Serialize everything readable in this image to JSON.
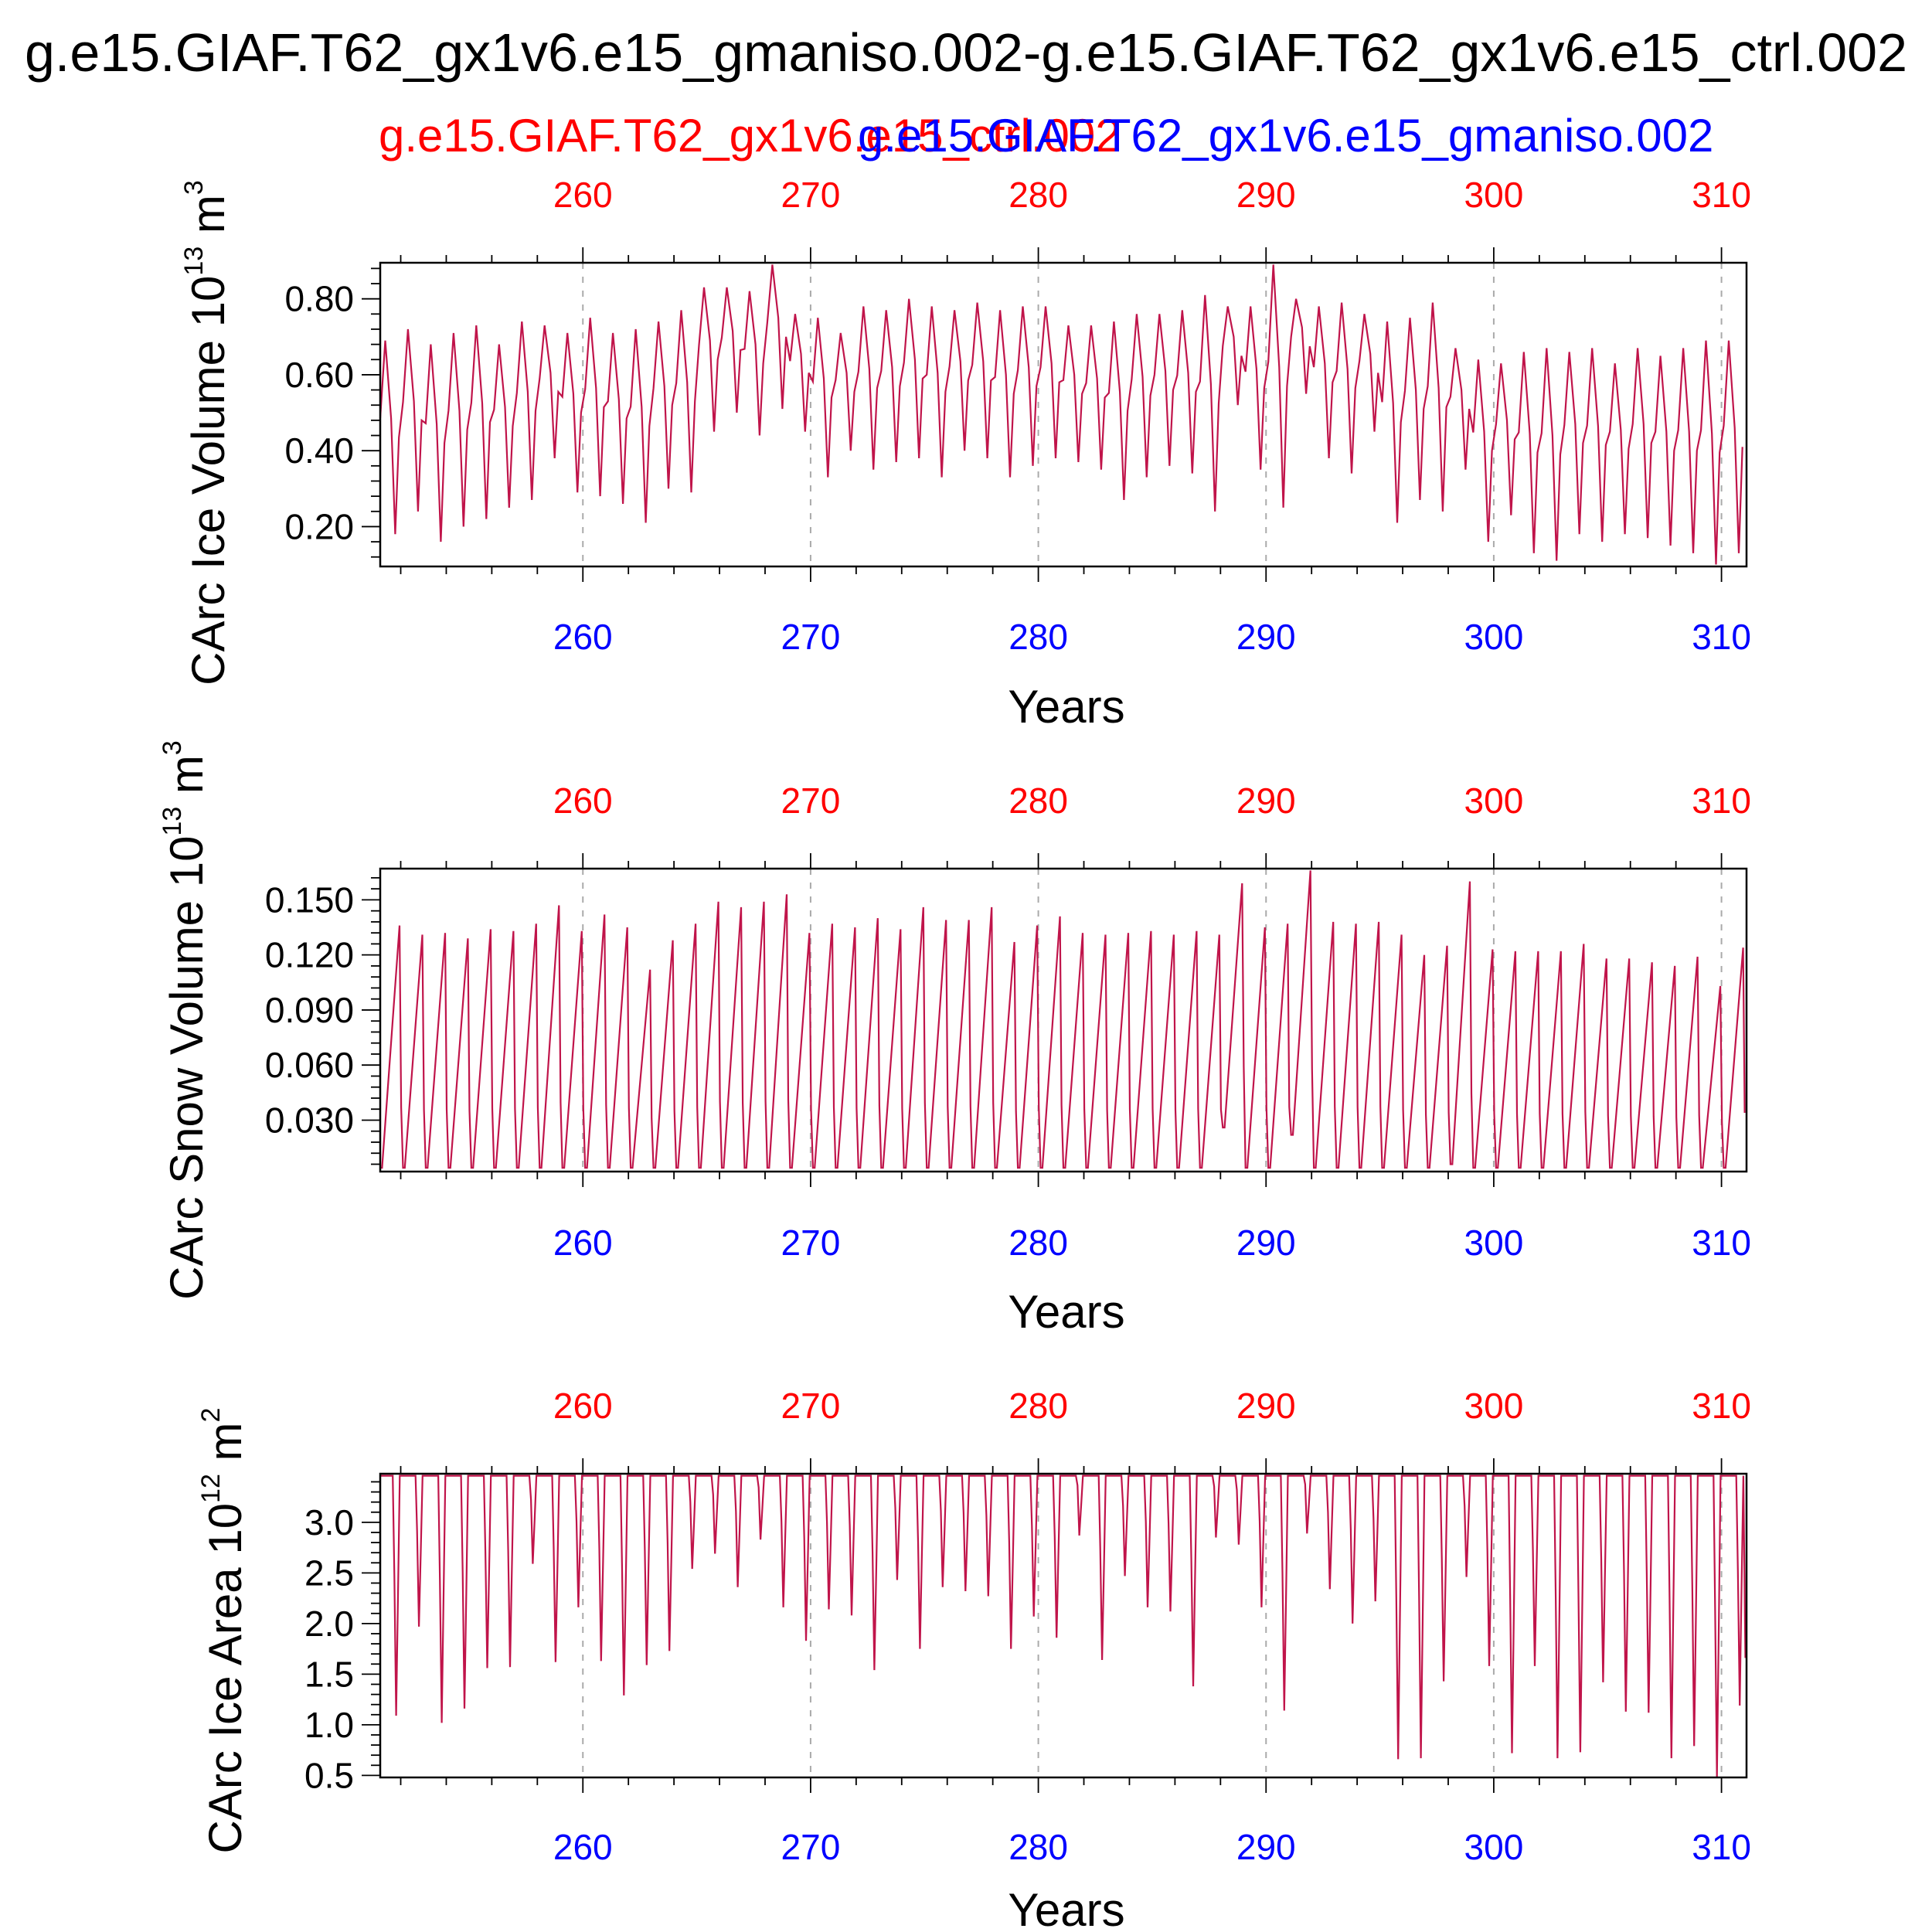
{
  "title": "g.e15.GIAF.T62_gx1v6.e15_gmaniso.002-g.e15.GIAF.T62_gx1v6.e15_ctrl.002",
  "legend": {
    "ctrl": "g.e15.GIAF.T62_gx1v6.e15_ctrl.002",
    "gmaniso": "g.e15.GIAF.T62_gx1v6.e15_gmaniso.002"
  },
  "colors": {
    "ctrl": "#ff0000",
    "gmaniso": "#0000ff",
    "line": "#c0144a",
    "grid": "#aaaaaa",
    "axis": "#000000"
  },
  "chart_data": [
    {
      "type": "line",
      "name": "ice-volume",
      "ylabel_main": "CArc Ice Volume 10",
      "ylabel_exp": "13",
      "ylabel_unit": " m",
      "ylabel_unit_exp": "3",
      "xlabel": "Years",
      "xlim": [
        251.1,
        311.1
      ],
      "ylim": [
        0.095,
        0.895
      ],
      "xticks": [
        260,
        270,
        280,
        290,
        300,
        310
      ],
      "xtick_labels": [
        "260",
        "270",
        "280",
        "290",
        "300",
        "310"
      ],
      "yticks": [
        0.2,
        0.4,
        0.6,
        0.8
      ],
      "ytick_labels": [
        "0.20",
        "0.40",
        "0.60",
        "0.80"
      ],
      "annual_max": [
        0.69,
        0.72,
        0.68,
        0.71,
        0.73,
        0.68,
        0.74,
        0.73,
        0.71,
        0.75,
        0.71,
        0.72,
        0.74,
        0.77,
        0.83,
        0.83,
        0.82,
        0.89,
        0.76,
        0.75,
        0.71,
        0.78,
        0.77,
        0.8,
        0.78,
        0.77,
        0.79,
        0.77,
        0.78,
        0.78,
        0.73,
        0.73,
        0.74,
        0.76,
        0.76,
        0.77,
        0.81,
        0.78,
        0.78,
        0.89,
        0.8,
        0.78,
        0.79,
        0.76,
        0.74,
        0.75,
        0.79,
        0.67,
        0.64,
        0.63,
        0.66,
        0.67,
        0.66,
        0.67,
        0.63,
        0.67,
        0.65,
        0.67,
        0.69,
        0.69
      ],
      "annual_min": [
        0.18,
        0.24,
        0.16,
        0.2,
        0.22,
        0.25,
        0.27,
        0.38,
        0.29,
        0.28,
        0.26,
        0.21,
        0.3,
        0.29,
        0.45,
        0.5,
        0.44,
        0.51,
        0.45,
        0.33,
        0.4,
        0.35,
        0.37,
        0.38,
        0.33,
        0.4,
        0.38,
        0.33,
        0.36,
        0.38,
        0.37,
        0.35,
        0.27,
        0.33,
        0.36,
        0.34,
        0.24,
        0.52,
        0.35,
        0.25,
        0.55,
        0.38,
        0.34,
        0.45,
        0.21,
        0.27,
        0.24,
        0.35,
        0.16,
        0.23,
        0.13,
        0.11,
        0.18,
        0.16,
        0.18,
        0.17,
        0.15,
        0.13,
        0.1,
        0.13
      ]
    },
    {
      "type": "line",
      "name": "snow-volume",
      "ylabel_main": "CArc Snow Volume 10",
      "ylabel_exp": "13",
      "ylabel_unit": " m",
      "ylabel_unit_exp": "3",
      "xlabel": "Years",
      "xlim": [
        251.1,
        311.1
      ],
      "ylim": [
        0.002,
        0.167
      ],
      "xticks": [
        260,
        270,
        280,
        290,
        300,
        310
      ],
      "xtick_labels": [
        "260",
        "270",
        "280",
        "290",
        "300",
        "310"
      ],
      "yticks": [
        0.03,
        0.06,
        0.09,
        0.12,
        0.15
      ],
      "ytick_labels": [
        "0.030",
        "0.060",
        "0.090",
        "0.120",
        "0.150"
      ],
      "annual_max": [
        0.136,
        0.131,
        0.132,
        0.129,
        0.134,
        0.133,
        0.137,
        0.147,
        0.133,
        0.142,
        0.135,
        0.112,
        0.128,
        0.137,
        0.149,
        0.146,
        0.149,
        0.153,
        0.132,
        0.137,
        0.135,
        0.14,
        0.134,
        0.146,
        0.139,
        0.139,
        0.146,
        0.127,
        0.136,
        0.141,
        0.132,
        0.131,
        0.132,
        0.133,
        0.131,
        0.133,
        0.131,
        0.159,
        0.135,
        0.137,
        0.166,
        0.138,
        0.137,
        0.138,
        0.131,
        0.12,
        0.125,
        0.16,
        0.123,
        0.122,
        0.122,
        0.122,
        0.126,
        0.118,
        0.118,
        0.116,
        0.114,
        0.119,
        0.103,
        0.124
      ],
      "annual_min": [
        0.004,
        0.004,
        0.004,
        0.004,
        0.004,
        0.004,
        0.004,
        0.004,
        0.004,
        0.004,
        0.004,
        0.004,
        0.004,
        0.004,
        0.004,
        0.004,
        0.004,
        0.004,
        0.004,
        0.004,
        0.004,
        0.004,
        0.004,
        0.004,
        0.004,
        0.004,
        0.004,
        0.004,
        0.004,
        0.004,
        0.004,
        0.004,
        0.004,
        0.004,
        0.004,
        0.004,
        0.004,
        0.026,
        0.004,
        0.004,
        0.022,
        0.004,
        0.004,
        0.004,
        0.004,
        0.004,
        0.004,
        0.006,
        0.004,
        0.004,
        0.004,
        0.004,
        0.004,
        0.004,
        0.004,
        0.004,
        0.004,
        0.004,
        0.004,
        0.004
      ]
    },
    {
      "type": "line",
      "name": "ice-area",
      "ylabel_main": "CArc Ice Area 10",
      "ylabel_exp": "12",
      "ylabel_unit": " m",
      "ylabel_unit_exp": "2",
      "xlabel": "Years",
      "xlim": [
        251.1,
        311.1
      ],
      "ylim": [
        0.48,
        3.48
      ],
      "xticks": [
        260,
        270,
        280,
        290,
        300,
        310
      ],
      "xtick_labels": [
        "260",
        "270",
        "280",
        "290",
        "300",
        "310"
      ],
      "yticks": [
        0.5,
        1.0,
        1.5,
        2.0,
        2.5,
        3.0
      ],
      "ytick_labels": [
        "0.5",
        "1.0",
        "1.5",
        "2.0",
        "2.5",
        "3.0"
      ],
      "annual_max": [
        3.46,
        3.46,
        3.46,
        3.46,
        3.46,
        3.46,
        3.46,
        3.46,
        3.46,
        3.46,
        3.46,
        3.46,
        3.46,
        3.46,
        3.46,
        3.46,
        3.46,
        3.46,
        3.46,
        3.46,
        3.46,
        3.46,
        3.46,
        3.46,
        3.46,
        3.46,
        3.46,
        3.46,
        3.46,
        3.46,
        3.46,
        3.46,
        3.46,
        3.46,
        3.46,
        3.46,
        3.46,
        3.46,
        3.46,
        3.46,
        3.46,
        3.46,
        3.46,
        3.46,
        3.46,
        3.46,
        3.46,
        3.46,
        3.46,
        3.46,
        3.46,
        3.46,
        3.46,
        3.46,
        3.46,
        3.46,
        3.46,
        3.46,
        3.46,
        3.46
      ],
      "annual_min": [
        1.09,
        1.97,
        1.02,
        1.16,
        1.56,
        1.57,
        2.59,
        1.62,
        2.16,
        1.63,
        1.29,
        1.59,
        1.73,
        2.54,
        2.69,
        2.36,
        2.83,
        2.16,
        1.83,
        2.14,
        2.08,
        1.54,
        2.43,
        1.75,
        2.36,
        2.32,
        2.27,
        1.75,
        2.07,
        1.86,
        2.87,
        1.64,
        2.47,
        2.16,
        2.12,
        1.38,
        2.85,
        2.78,
        2.16,
        1.14,
        2.89,
        2.34,
        2.0,
        2.22,
        0.66,
        0.67,
        1.43,
        2.46,
        1.58,
        0.72,
        1.58,
        0.67,
        0.73,
        1.42,
        1.13,
        1.12,
        0.67,
        0.79,
        0.48,
        1.19
      ],
      "end_min": 1.66
    }
  ]
}
